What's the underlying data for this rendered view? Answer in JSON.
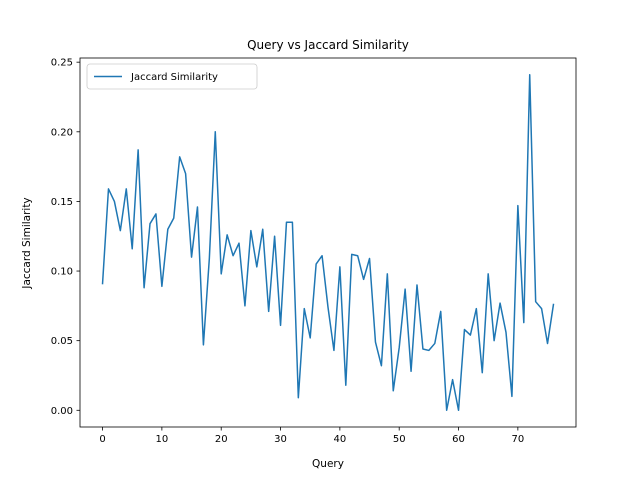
{
  "chart_data": {
    "type": "line",
    "title": "Query vs Jaccard Similarity",
    "xlabel": "Query",
    "ylabel": "Jaccard Similarity",
    "xlim": [
      -3.8,
      79.8
    ],
    "ylim": [
      -0.012,
      0.253
    ],
    "xticks": [
      0,
      10,
      20,
      30,
      40,
      50,
      60,
      70
    ],
    "yticks": [
      0.0,
      0.05,
      0.1,
      0.15,
      0.2,
      0.25
    ],
    "ytick_labels": [
      "0.00",
      "0.05",
      "0.10",
      "0.15",
      "0.20",
      "0.25"
    ],
    "grid": false,
    "legend": {
      "position": "top-left",
      "entries": [
        "Jaccard Similarity"
      ]
    },
    "series": [
      {
        "name": "Jaccard Similarity",
        "color": "#1f77b4",
        "x": [
          0,
          1,
          2,
          3,
          4,
          5,
          6,
          7,
          8,
          9,
          10,
          11,
          12,
          13,
          14,
          15,
          16,
          17,
          18,
          19,
          20,
          21,
          22,
          23,
          24,
          25,
          26,
          27,
          28,
          29,
          30,
          31,
          32,
          33,
          34,
          35,
          36,
          37,
          38,
          39,
          40,
          41,
          42,
          43,
          44,
          45,
          46,
          47,
          48,
          49,
          50,
          51,
          52,
          53,
          54,
          55,
          56,
          57,
          58,
          59,
          60,
          61,
          62,
          63,
          64,
          65,
          66,
          67,
          68,
          69,
          70,
          71,
          72,
          73,
          74,
          75,
          76
        ],
        "values": [
          0.091,
          0.159,
          0.15,
          0.129,
          0.159,
          0.116,
          0.187,
          0.088,
          0.134,
          0.141,
          0.089,
          0.13,
          0.138,
          0.182,
          0.17,
          0.11,
          0.146,
          0.047,
          0.109,
          0.2,
          0.098,
          0.126,
          0.111,
          0.12,
          0.075,
          0.129,
          0.103,
          0.13,
          0.071,
          0.125,
          0.061,
          0.135,
          0.135,
          0.009,
          0.073,
          0.052,
          0.105,
          0.111,
          0.074,
          0.043,
          0.103,
          0.018,
          0.112,
          0.111,
          0.094,
          0.109,
          0.049,
          0.032,
          0.098,
          0.014,
          0.045,
          0.087,
          0.028,
          0.09,
          0.044,
          0.043,
          0.048,
          0.071,
          0.0,
          0.022,
          0.0,
          0.058,
          0.054,
          0.073,
          0.027,
          0.098,
          0.05,
          0.077,
          0.056,
          0.01,
          0.147,
          0.063,
          0.241,
          0.078,
          0.073,
          0.048,
          0.076
        ]
      }
    ]
  }
}
